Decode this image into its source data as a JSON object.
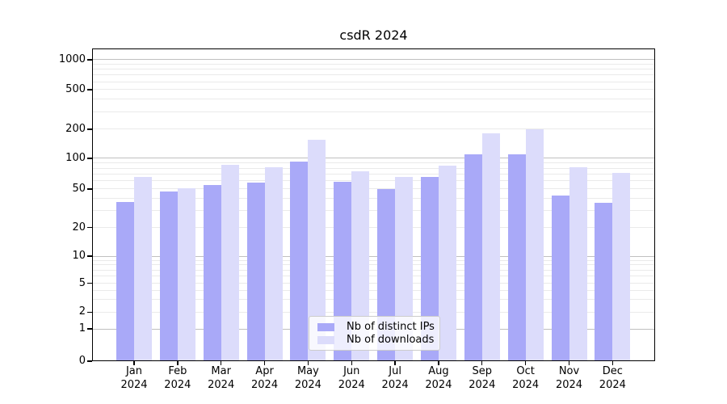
{
  "title": "csdR 2024",
  "chart_data": {
    "type": "bar",
    "title": "csdR 2024",
    "categories": [
      "Jan",
      "Feb",
      "Mar",
      "Apr",
      "May",
      "Jun",
      "Jul",
      "Aug",
      "Sep",
      "Oct",
      "Nov",
      "Dec"
    ],
    "year_label": "2024",
    "series": [
      {
        "name": "Nb of distinct IPs",
        "key": "distinct-ips",
        "color": "#a9a9f8",
        "values": [
          37,
          47,
          55,
          58,
          92,
          59,
          50,
          65,
          110,
          110,
          43,
          36
        ]
      },
      {
        "name": "Nb of downloads",
        "key": "downloads",
        "color": "#dcdcfb",
        "values": [
          66,
          51,
          87,
          81,
          155,
          74,
          65,
          85,
          180,
          200,
          81,
          72
        ]
      }
    ],
    "yticks": [
      0,
      1,
      2,
      5,
      10,
      20,
      50,
      100,
      200,
      500,
      1000
    ],
    "ylim": [
      0,
      1300
    ],
    "yscale": "log-like (log decades above 10, compressed 1-10 decade, 0 at baseline)",
    "grid": "horizontal minor+major",
    "legend_position": "lower center inside plot",
    "xlabel": "",
    "ylabel": ""
  },
  "colors": {
    "bar_distinct_ips": "#a9a9f8",
    "bar_downloads": "#dcdcfb",
    "grid_major": "#c0c0c0",
    "grid_minor": "#eaeaea",
    "axis": "#000000",
    "legend_border": "#cccccc",
    "legend_bg": "rgba(255,255,255,0.8)"
  }
}
